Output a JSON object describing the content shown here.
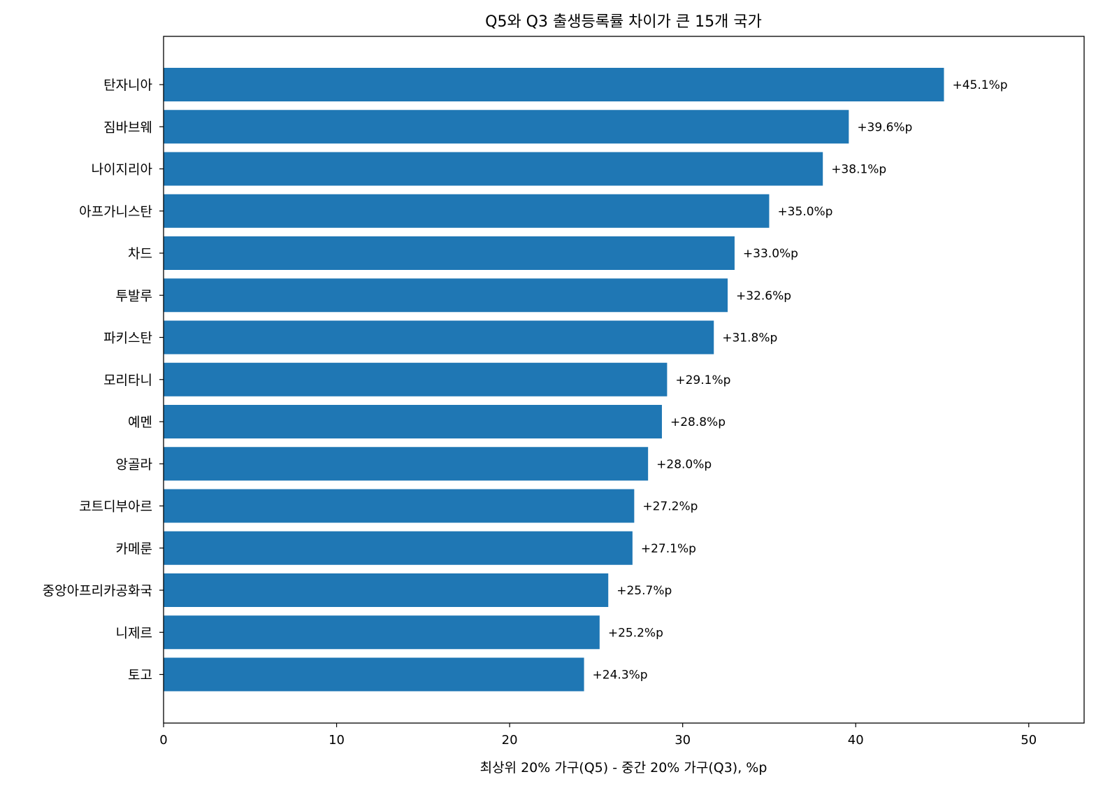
{
  "chart_data": {
    "type": "bar",
    "orientation": "horizontal",
    "title": "Q5와 Q3 출생등록률 차이가 큰 15개 국가",
    "xlabel": "최상위 20% 가구(Q5) - 중간 20% 가구(Q3), %p",
    "ylabel": "",
    "xlim": [
      0,
      53.2
    ],
    "xticks": [
      0,
      10,
      20,
      30,
      40,
      50
    ],
    "grid": false,
    "bar_color": "#1f77b4",
    "categories": [
      "탄자니아",
      "짐바브웨",
      "나이지리아",
      "아프가니스탄",
      "차드",
      "투발루",
      "파키스탄",
      "모리타니",
      "예멘",
      "앙골라",
      "코트디부아르",
      "카메룬",
      "중앙아프리카공화국",
      "니제르",
      "토고"
    ],
    "values": [
      45.1,
      39.6,
      38.1,
      35.0,
      33.0,
      32.6,
      31.8,
      29.1,
      28.8,
      28.0,
      27.2,
      27.1,
      25.7,
      25.2,
      24.3
    ],
    "data_labels": [
      "+45.1%p",
      "+39.6%p",
      "+38.1%p",
      "+35.0%p",
      "+33.0%p",
      "+32.6%p",
      "+31.8%p",
      "+29.1%p",
      "+28.8%p",
      "+28.0%p",
      "+27.2%p",
      "+27.1%p",
      "+25.7%p",
      "+25.2%p",
      "+24.3%p"
    ]
  }
}
